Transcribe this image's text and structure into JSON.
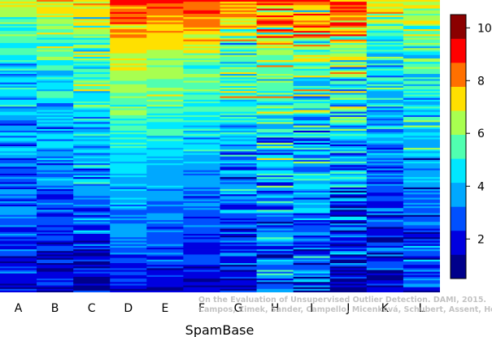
{
  "chart_data": {
    "type": "heatmap",
    "title": "",
    "xlabel": "SpamBase",
    "ylabel": "",
    "columns": [
      "A",
      "B",
      "C",
      "D",
      "E",
      "F",
      "G",
      "H",
      "I",
      "J",
      "K",
      "L"
    ],
    "row_count": 170,
    "sorted_by_column": "D",
    "color_scale": {
      "range": [
        0.5,
        10.5
      ],
      "ticks": [
        2,
        4,
        6,
        8,
        10
      ],
      "colors": [
        "#00008b",
        "#0000e0",
        "#0050ff",
        "#00a8ff",
        "#00e8ff",
        "#50ffb0",
        "#a8ff50",
        "#ffe000",
        "#ff7000",
        "#ff0000",
        "#8b0000"
      ]
    },
    "column_profiles": {
      "A": [
        [
          0,
          7.2
        ],
        [
          0.15,
          5.5
        ],
        [
          0.4,
          4.2
        ],
        [
          0.7,
          3.0
        ],
        [
          1,
          1.8
        ]
      ],
      "B": [
        [
          0,
          7.6
        ],
        [
          0.15,
          5.8
        ],
        [
          0.4,
          4.4
        ],
        [
          0.7,
          3.1
        ],
        [
          1,
          1.8
        ]
      ],
      "C": [
        [
          0,
          8.0
        ],
        [
          0.2,
          6.0
        ],
        [
          0.45,
          4.6
        ],
        [
          0.75,
          3.0
        ],
        [
          1,
          1.6
        ]
      ],
      "D": [
        [
          0,
          9.6
        ],
        [
          0.15,
          8.0
        ],
        [
          0.35,
          6.4
        ],
        [
          0.6,
          4.4
        ],
        [
          0.85,
          3.2
        ],
        [
          1,
          2.0
        ]
      ],
      "E": [
        [
          0,
          9.6
        ],
        [
          0.15,
          7.6
        ],
        [
          0.35,
          6.0
        ],
        [
          0.6,
          4.0
        ],
        [
          0.85,
          2.9
        ],
        [
          1,
          1.8
        ]
      ],
      "F": [
        [
          0,
          9.6
        ],
        [
          0.15,
          7.3
        ],
        [
          0.35,
          5.8
        ],
        [
          0.6,
          3.9
        ],
        [
          0.85,
          2.7
        ],
        [
          1,
          1.6
        ]
      ],
      "G": [
        [
          0,
          8.6
        ],
        [
          0.2,
          6.2
        ],
        [
          0.45,
          4.4
        ],
        [
          0.75,
          2.8
        ],
        [
          1,
          1.3
        ]
      ],
      "H": [
        [
          0,
          9.6
        ],
        [
          0.2,
          6.6
        ],
        [
          0.5,
          4.8
        ],
        [
          0.8,
          3.6
        ],
        [
          1,
          3.0
        ]
      ],
      "I": [
        [
          0,
          8.6
        ],
        [
          0.2,
          6.6
        ],
        [
          0.5,
          4.8
        ],
        [
          0.8,
          3.0
        ],
        [
          1,
          2.0
        ]
      ],
      "J": [
        [
          0,
          9.2
        ],
        [
          0.2,
          6.2
        ],
        [
          0.5,
          4.4
        ],
        [
          0.8,
          2.2
        ],
        [
          1,
          1.0
        ]
      ],
      "K": [
        [
          0,
          7.2
        ],
        [
          0.2,
          5.0
        ],
        [
          0.5,
          3.6
        ],
        [
          0.8,
          2.4
        ],
        [
          1,
          1.6
        ]
      ],
      "L": [
        [
          0,
          7.4
        ],
        [
          0.2,
          5.8
        ],
        [
          0.5,
          4.2
        ],
        [
          0.8,
          3.0
        ],
        [
          1,
          2.4
        ]
      ]
    },
    "column_noise": {
      "A": 1.5,
      "B": 1.5,
      "C": 1.6,
      "D": 0.8,
      "E": 0.9,
      "F": 1.0,
      "G": 1.9,
      "H": 2.9,
      "I": 2.4,
      "J": 2.6,
      "K": 1.9,
      "L": 1.7
    },
    "legend_position": "right",
    "grid": false
  },
  "watermark": {
    "line1": "On the Evaluation of Unsupervised Outlier Detection. DAMI, 2015.",
    "line2": "Campos, Zimek, Sander, Campello, Micenková, Schubert, Assent, Houle"
  }
}
